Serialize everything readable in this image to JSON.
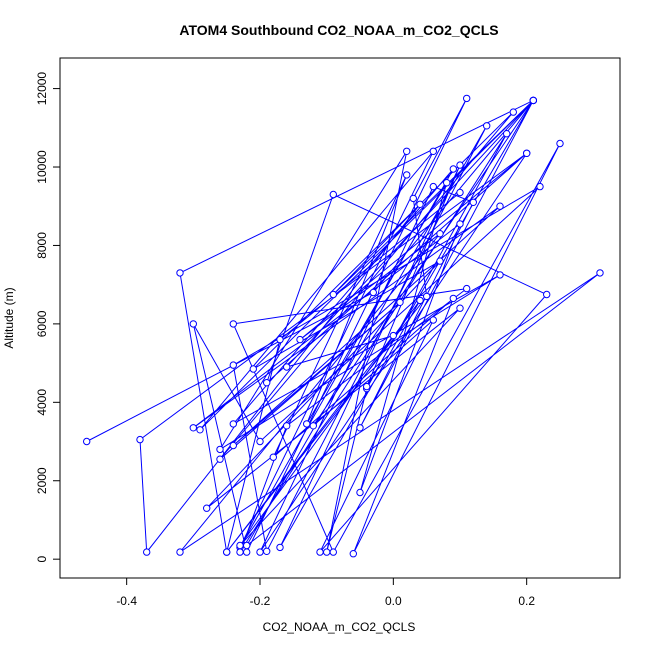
{
  "chart_data": {
    "type": "scatter",
    "title": "ATOM4 Southbound CO2_NOAA_m_CO2_QCLS",
    "xlabel": "CO2_NOAA_m_CO2_QCLS",
    "ylabel": "Altitude (m)",
    "xlim": [
      -0.5,
      0.34
    ],
    "ylim": [
      -480,
      12780
    ],
    "x_ticks": [
      -0.4,
      -0.2,
      0.0,
      0.2
    ],
    "x_tick_labels": [
      "-0.4",
      "-0.2",
      "0.0",
      "0.2"
    ],
    "y_ticks": [
      0,
      2000,
      4000,
      6000,
      8000,
      10000,
      12000
    ],
    "y_tick_labels": [
      "0",
      "2000",
      "4000",
      "6000",
      "8000",
      "10000",
      "12000"
    ],
    "connect_points": true,
    "grid": false,
    "series": [
      {
        "color": "#0000ff",
        "marker": "open-circle",
        "points": [
          [
            -0.46,
            3000
          ],
          [
            -0.03,
            6800
          ],
          [
            0.21,
            11700
          ],
          [
            -0.05,
            3350
          ],
          [
            0.12,
            9100
          ],
          [
            0.06,
            9500
          ],
          [
            -0.2,
            180
          ],
          [
            0.2,
            10350
          ],
          [
            -0.38,
            3050
          ],
          [
            -0.37,
            180
          ],
          [
            0.04,
            9050
          ],
          [
            -0.09,
            6750
          ],
          [
            0.21,
            11700
          ],
          [
            -0.32,
            7300
          ],
          [
            -0.25,
            180
          ],
          [
            0.05,
            6700
          ],
          [
            0.03,
            9200
          ],
          [
            0.11,
            11750
          ],
          [
            -0.22,
            180
          ],
          [
            -0.3,
            6000
          ],
          [
            -0.2,
            3000
          ],
          [
            0.22,
            9500
          ],
          [
            -0.24,
            4950
          ],
          [
            -0.19,
            200
          ],
          [
            0.14,
            11050
          ],
          [
            -0.22,
            350
          ],
          [
            0.31,
            7300
          ],
          [
            -0.32,
            180
          ],
          [
            0.07,
            8300
          ],
          [
            -0.14,
            5600
          ],
          [
            0.2,
            10350
          ],
          [
            -0.19,
            4500
          ],
          [
            -0.09,
            9300
          ],
          [
            0.23,
            6750
          ],
          [
            -0.11,
            180
          ],
          [
            0.06,
            6100
          ],
          [
            -0.12,
            3400
          ],
          [
            0.21,
            11700
          ],
          [
            -0.29,
            3300
          ],
          [
            0.06,
            10400
          ],
          [
            -0.23,
            300
          ],
          [
            0.09,
            9950
          ],
          [
            -0.24,
            3450
          ],
          [
            0.16,
            7250
          ],
          [
            -0.26,
            2800
          ],
          [
            0.02,
            10400
          ],
          [
            -0.1,
            180
          ],
          [
            -0.04,
            4350
          ],
          [
            0.17,
            10850
          ],
          [
            -0.23,
            180
          ],
          [
            -0.16,
            3400
          ],
          [
            0.11,
            6900
          ],
          [
            -0.24,
            6000
          ],
          [
            -0.09,
            180
          ],
          [
            0.25,
            10600
          ],
          [
            -0.06,
            140
          ],
          [
            0.09,
            6650
          ],
          [
            -0.18,
            2600
          ],
          [
            0.02,
            9800
          ],
          [
            -0.13,
            3450
          ],
          [
            0.08,
            9600
          ],
          [
            -0.05,
            1700
          ],
          [
            0.1,
            8550
          ],
          [
            -0.3,
            3350
          ],
          [
            0.16,
            9000
          ],
          [
            -0.24,
            2900
          ],
          [
            0.01,
            6550
          ],
          [
            -0.26,
            2550
          ],
          [
            0.18,
            11400
          ],
          [
            -0.21,
            4850
          ],
          [
            0.07,
            7600
          ],
          [
            -0.28,
            1300
          ],
          [
            0.1,
            6400
          ],
          [
            -0.23,
            350
          ],
          [
            0.04,
            6600
          ],
          [
            -0.17,
            300
          ],
          [
            0.1,
            10050
          ],
          [
            -0.04,
            4400
          ],
          [
            0.21,
            11700
          ],
          [
            -0.16,
            4900
          ],
          [
            0.0,
            5700
          ],
          [
            -0.25,
            180
          ],
          [
            -0.17,
            5600
          ],
          [
            0.1,
            9350
          ]
        ]
      }
    ]
  }
}
